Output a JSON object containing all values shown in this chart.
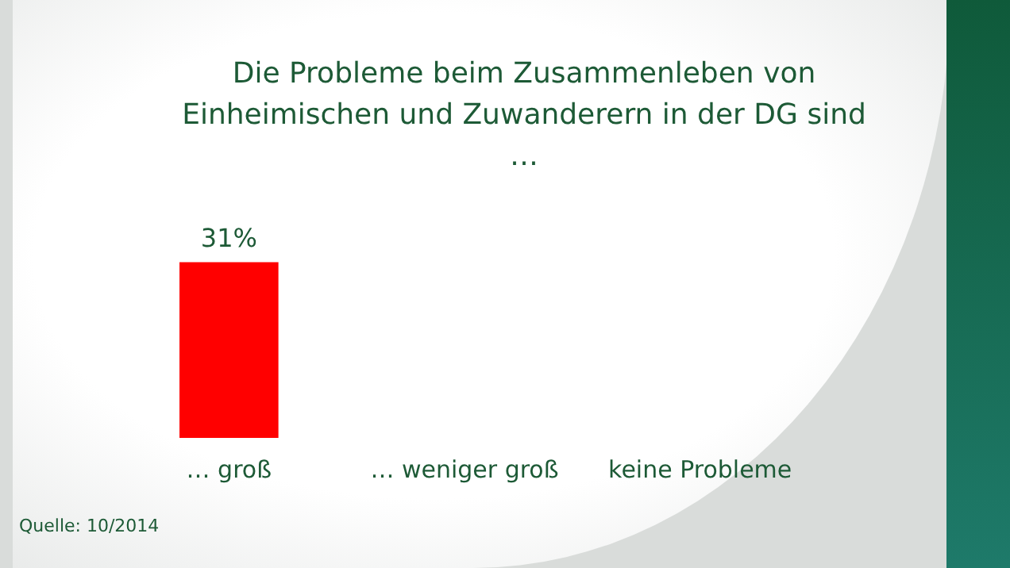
{
  "chart_data": {
    "type": "bar",
    "title": "Die Probleme beim Zusammenleben von Einheimischen und Zuwanderern in der DG sind …",
    "categories": [
      "… groß",
      "… weniger groß",
      "keine Probleme"
    ],
    "values": [
      31,
      null,
      null
    ],
    "color": "#ff0000",
    "value_labels": [
      "31%",
      null,
      null
    ],
    "annotations": [
      "Quelle: 10/2014"
    ],
    "grid": false,
    "legend": false,
    "tick_labels": "x"
  }
}
